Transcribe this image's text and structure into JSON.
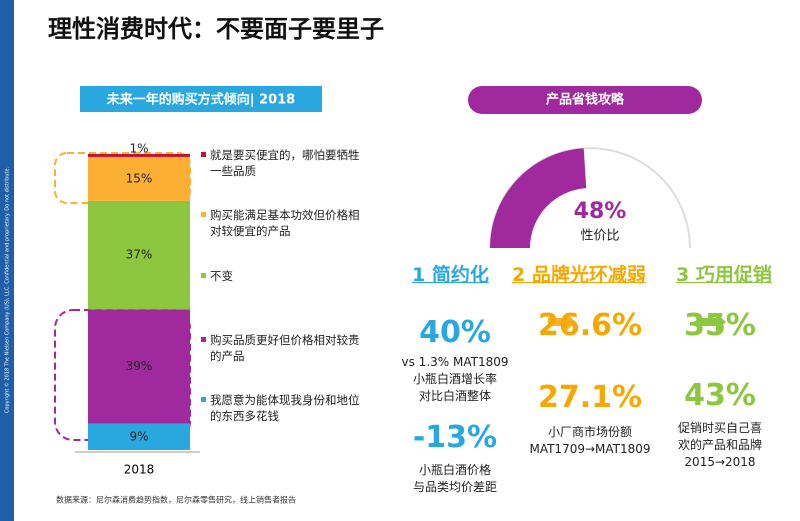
{
  "title": "理性消费时代：不要面子要里子",
  "copyright": "Copyright © 2018 The Nielsen Company (US), LLC. Confidential and proprietary. Do not distribute.",
  "left_header": "未来一年的购买方式倾向| 2018",
  "right_header": "产品省钱攻略",
  "source": "数据来源：尼尔森消费趋势指数，尼尔森零售研究，线上销售者报告",
  "chart_data": [
    {
      "type": "stacked_bar",
      "categories": [
        "2018"
      ],
      "series": [
        {
          "name": "就是要买便宜的，哪怕要牺牲一些品质",
          "color": "#c8102e",
          "values": [
            1
          ],
          "value_labels": [
            "1%"
          ]
        },
        {
          "name": "购买能满足基本功效但价格相对较便宜的产品",
          "color": "#fbb034",
          "values": [
            15
          ],
          "value_labels": [
            "15%"
          ]
        },
        {
          "name": "不变",
          "color": "#8dc63f",
          "values": [
            37
          ],
          "value_labels": [
            "37%"
          ]
        },
        {
          "name": "购买品质更好但价格相对较贵的产品",
          "color": "#a0299d",
          "values": [
            39
          ],
          "value_labels": [
            "39%"
          ]
        },
        {
          "name": "我愿意为能体现我身份和地位的东西多花钱",
          "color": "#29a8e0",
          "values": [
            9
          ],
          "value_labels": [
            "9%"
          ]
        }
      ]
    },
    {
      "type": "gauge",
      "values": [
        48
      ],
      "value_labels": [
        "48%"
      ],
      "label": "性价比",
      "color": "#a0299d"
    }
  ],
  "tips": [
    {
      "heading": "1 简约化",
      "color": "#29a8e0",
      "stats": [
        {
          "value": "40%",
          "lines": [
            "vs 1.3% MAT1809",
            "小瓶白酒增长率",
            "对比白酒整体"
          ]
        },
        {
          "value": "-13%",
          "lines": [
            "小瓶白酒价格",
            "与品类均价差距"
          ]
        }
      ]
    },
    {
      "heading": "2 品牌光环减弱",
      "color": "#f5a800",
      "stats": [
        {
          "value": "26.6%"
        },
        {
          "value": "27.1%",
          "lines": [
            "小厂商市场份额",
            "MAT1709→MAT1809"
          ]
        }
      ]
    },
    {
      "heading": "3 巧用促销",
      "color": "#8dc63f",
      "stats": [
        {
          "value": "35%"
        },
        {
          "value": "43%",
          "lines": [
            "促销时买自己喜",
            "欢的产品和品牌",
            "2015→2018"
          ]
        }
      ]
    }
  ]
}
